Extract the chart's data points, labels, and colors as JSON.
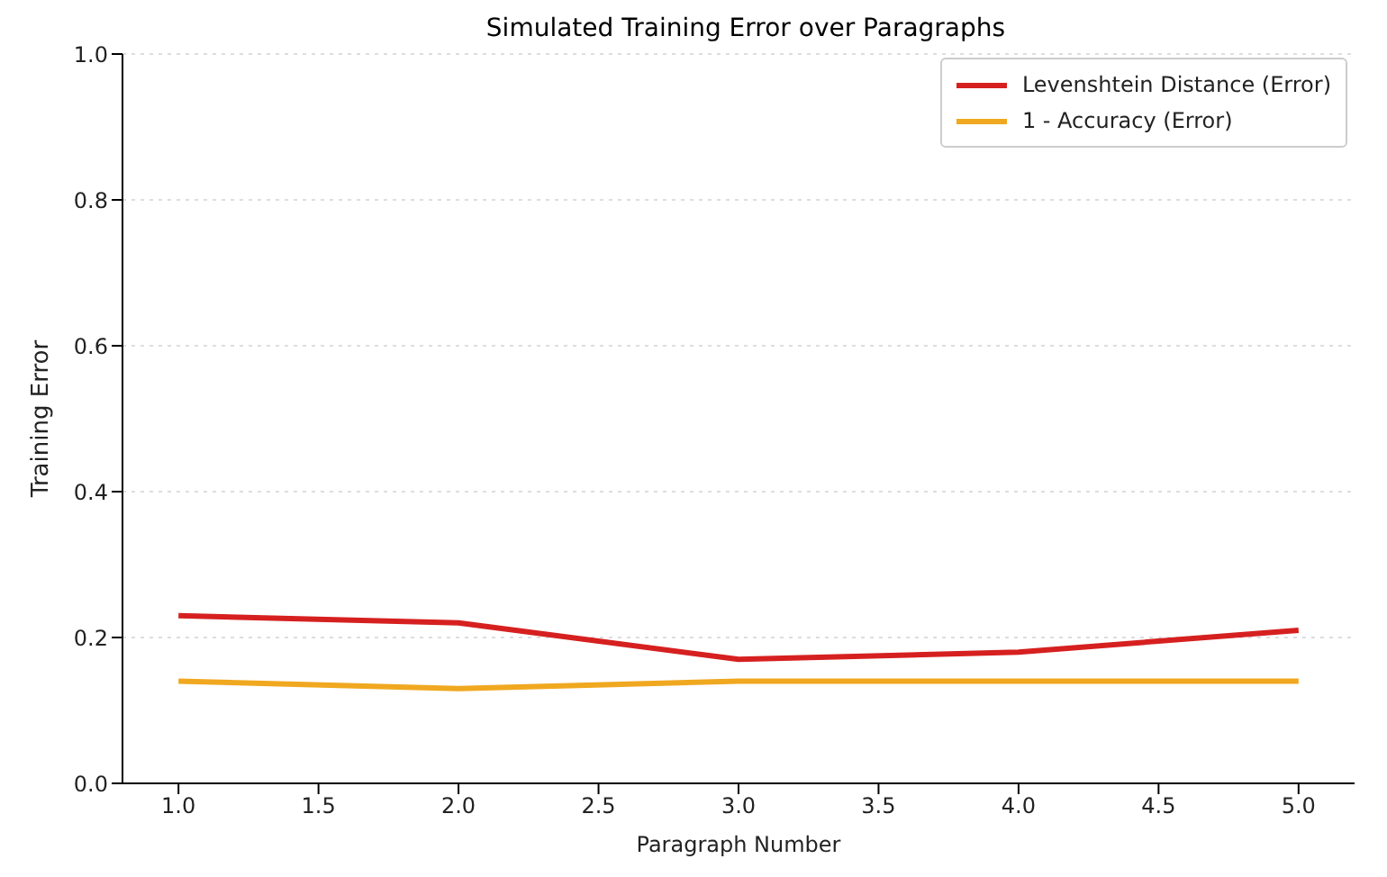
{
  "chart_data": {
    "type": "line",
    "title": "Simulated Training Error over Paragraphs",
    "xlabel": "Paragraph Number",
    "ylabel": "Training Error",
    "x": [
      1,
      2,
      3,
      4,
      5
    ],
    "series": [
      {
        "name": "Levenshtein Distance (Error)",
        "color": "#d62020",
        "values": [
          0.23,
          0.22,
          0.17,
          0.18,
          0.21
        ]
      },
      {
        "name": "1 - Accuracy (Error)",
        "color": "#f0a820",
        "values": [
          0.14,
          0.13,
          0.14,
          0.14,
          0.14
        ]
      }
    ],
    "xlim": [
      0.8,
      5.2
    ],
    "xticks": [
      {
        "value": 1,
        "label": "1.0"
      },
      {
        "value": 1.5,
        "label": "1.5"
      },
      {
        "value": 2,
        "label": "2.0"
      },
      {
        "value": 2.5,
        "label": "2.5"
      },
      {
        "value": 3,
        "label": "3.0"
      },
      {
        "value": 3.5,
        "label": "3.5"
      },
      {
        "value": 4,
        "label": "4.0"
      },
      {
        "value": 4.5,
        "label": "4.5"
      },
      {
        "value": 5,
        "label": "5.0"
      }
    ],
    "ylim": [
      0,
      1
    ],
    "yticks": [
      {
        "value": 0,
        "label": "0.0"
      },
      {
        "value": 0.2,
        "label": "0.2"
      },
      {
        "value": 0.4,
        "label": "0.4"
      },
      {
        "value": 0.6,
        "label": "0.6"
      },
      {
        "value": 0.8,
        "label": "0.8"
      },
      {
        "value": 1,
        "label": "1.0"
      }
    ],
    "grid": "y",
    "legend": "top right",
    "marker": "none",
    "line_style": "solid"
  }
}
